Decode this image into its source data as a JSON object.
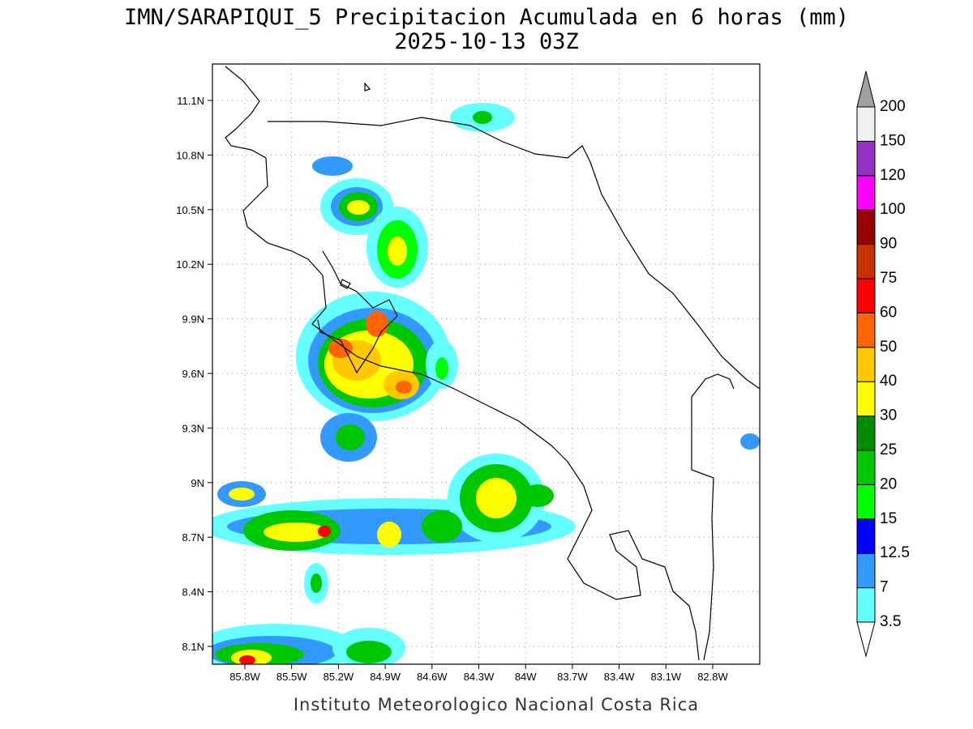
{
  "title": "IMN/SARAPIQUI_5 Precipitacion Acumulada en 6 horas (mm)",
  "subtitle": "2025-10-13 03Z",
  "lon_ticks": [
    "85.8W",
    "85.5W",
    "85.2W",
    "84.9W",
    "84.6W",
    "84.3W",
    "84W",
    "83.7W",
    "83.4W",
    "83.1W",
    "82.8W"
  ],
  "lat_ticks": [
    "11.1N",
    "10.8N",
    "10.5N",
    "10.2N",
    "9.9N",
    "9.6N",
    "9.3N",
    "9N",
    "8.7N",
    "8.4N",
    "8.1N"
  ],
  "colorbar": {
    "levels": [
      3.5,
      7,
      12.5,
      15,
      20,
      25,
      30,
      40,
      50,
      60,
      75,
      90,
      100,
      120,
      150,
      200
    ],
    "colors": [
      "#ffffff",
      "#66ffff",
      "#3399ff",
      "#0000ff",
      "#00ff00",
      "#00c800",
      "#008c00",
      "#ffff00",
      "#ffc800",
      "#ff6400",
      "#ff0000",
      "#c83200",
      "#960000",
      "#ff00ff",
      "#9632c8",
      "#f0f0f0",
      "#a0a0a0"
    ]
  },
  "footer": "Instituto Meteorologico Nacional Costa Rica"
}
